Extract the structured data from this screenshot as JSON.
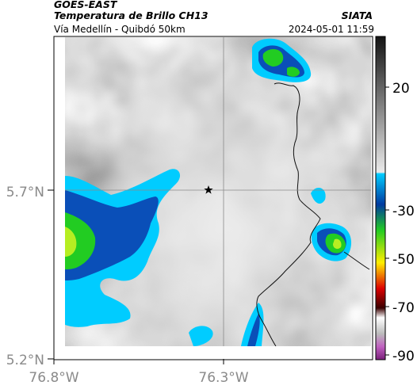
{
  "header": {
    "satellite": "GOES-EAST",
    "product": "Temperatura de Brillo CH13",
    "route": "Vía Medellín - Quibdó 50km",
    "org": "SIATA",
    "timestamp": "2024-05-01 11:59"
  },
  "map": {
    "lat_ticks": [
      "5.7°N",
      "5.2°N"
    ],
    "lon_ticks": [
      "76.8°W",
      "76.3°W"
    ],
    "marker_icon": "star-icon"
  },
  "colorbar": {
    "tick_labels": [
      "20",
      "-30",
      "-50",
      "-70",
      "-90"
    ],
    "colors": {
      "warm_gray_top": "#141414",
      "warm_gray_bottom": "#eaeaea",
      "cyan": "#00ccff",
      "blue": "#003aa0",
      "green": "#22cc22",
      "yellow": "#ffee00",
      "red": "#dd0000",
      "magenta": "#c060c0"
    }
  }
}
